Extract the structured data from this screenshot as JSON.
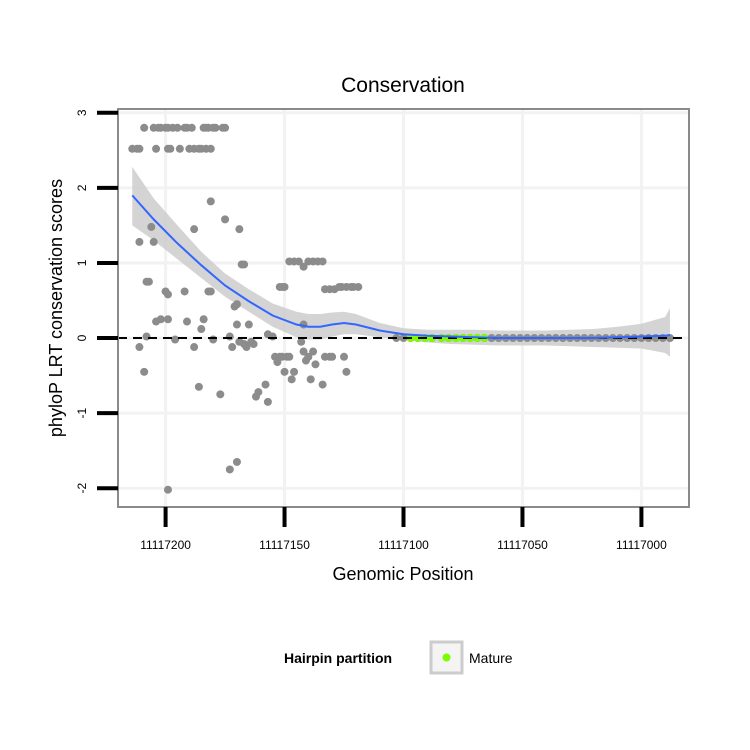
{
  "chart_data": {
    "type": "scatter",
    "title": "Conservation",
    "xlabel": "Genomic Position",
    "ylabel": "phyloP LRT conservation scores",
    "xlim": [
      11117220,
      11116980
    ],
    "ylim": [
      -2.25,
      3.05
    ],
    "x_reversed": true,
    "x_ticks": [
      11117200,
      11117150,
      11117100,
      11117050,
      11117000
    ],
    "x_tick_labels": [
      "11117200",
      "11117150",
      "11117100",
      "11117050",
      "11117000"
    ],
    "y_ticks": [
      -2,
      -1,
      0,
      1,
      2,
      3
    ],
    "y_tick_labels": [
      "-2",
      "-1",
      "0",
      "1",
      "2",
      "3"
    ],
    "reference_line": 0,
    "colors": {
      "points": "#8c8c8c",
      "mature": "#7cfc00",
      "smooth": "#3366ff",
      "ribbon": "#cccccc",
      "panel_border": "#8a8a8a",
      "grid": "#f2f2f2"
    },
    "points": [
      [
        11117214,
        2.52
      ],
      [
        11117212,
        2.52
      ],
      [
        11117211,
        2.52
      ],
      [
        11117209,
        2.8
      ],
      [
        11117205,
        2.8
      ],
      [
        11117203,
        2.8
      ],
      [
        11117202,
        2.8
      ],
      [
        11117200,
        2.8
      ],
      [
        11117199,
        2.8
      ],
      [
        11117197,
        2.8
      ],
      [
        11117195,
        2.8
      ],
      [
        11117192,
        2.8
      ],
      [
        11117191,
        2.8
      ],
      [
        11117189,
        2.8
      ],
      [
        11117184,
        2.8
      ],
      [
        11117183,
        2.8
      ],
      [
        11117182,
        2.8
      ],
      [
        11117180,
        2.8
      ],
      [
        11117179,
        2.8
      ],
      [
        11117176,
        2.8
      ],
      [
        11117175,
        2.8
      ],
      [
        11117204,
        2.52
      ],
      [
        11117199,
        2.52
      ],
      [
        11117198,
        2.52
      ],
      [
        11117194,
        2.52
      ],
      [
        11117190,
        2.52
      ],
      [
        11117188,
        2.52
      ],
      [
        11117186,
        2.52
      ],
      [
        11117185,
        2.52
      ],
      [
        11117183,
        2.52
      ],
      [
        11117181,
        2.52
      ],
      [
        11117211,
        1.28
      ],
      [
        11117205,
        1.28
      ],
      [
        11117206,
        1.48
      ],
      [
        11117207,
        0.75
      ],
      [
        11117208,
        0.75
      ],
      [
        11117200,
        0.62
      ],
      [
        11117199,
        0.58
      ],
      [
        11117188,
        1.45
      ],
      [
        11117181,
        1.82
      ],
      [
        11117175,
        1.58
      ],
      [
        11117169,
        1.45
      ],
      [
        11117168,
        0.98
      ],
      [
        11117167,
        0.98
      ],
      [
        11117211,
        -0.12
      ],
      [
        11117208,
        0.02
      ],
      [
        11117209,
        -0.45
      ],
      [
        11117204,
        0.22
      ],
      [
        11117202,
        0.25
      ],
      [
        11117199,
        0.25
      ],
      [
        11117196,
        -0.02
      ],
      [
        11117192,
        0.62
      ],
      [
        11117191,
        0.22
      ],
      [
        11117188,
        -0.12
      ],
      [
        11117185,
        0.12
      ],
      [
        11117184,
        0.25
      ],
      [
        11117182,
        0.62
      ],
      [
        11117181,
        0.62
      ],
      [
        11117186,
        -0.65
      ],
      [
        11117180,
        -0.02
      ],
      [
        11117177,
        -0.75
      ],
      [
        11117173,
        0.02
      ],
      [
        11117171,
        0.42
      ],
      [
        11117170,
        0.45
      ],
      [
        11117169,
        -0.05
      ],
      [
        11117170,
        0.18
      ],
      [
        11117172,
        -0.12
      ],
      [
        11117167,
        -0.08
      ],
      [
        11117166,
        -0.12
      ],
      [
        11117165,
        0.18
      ],
      [
        11117164,
        -0.05
      ],
      [
        11117163,
        -0.08
      ],
      [
        11117162,
        -0.78
      ],
      [
        11117161,
        -0.72
      ],
      [
        11117173,
        -1.75
      ],
      [
        11117170,
        -1.65
      ],
      [
        11117199,
        -2.02
      ],
      [
        11117157,
        0.05
      ],
      [
        11117158,
        -0.62
      ],
      [
        11117157,
        -0.85
      ],
      [
        11117155,
        0.02
      ],
      [
        11117154,
        -0.25
      ],
      [
        11117153,
        -0.32
      ],
      [
        11117152,
        -0.25
      ],
      [
        11117151,
        -0.25
      ],
      [
        11117150,
        -0.45
      ],
      [
        11117149,
        -0.25
      ],
      [
        11117148,
        -0.25
      ],
      [
        11117146,
        -0.45
      ],
      [
        11117147,
        -0.55
      ],
      [
        11117152,
        0.68
      ],
      [
        11117151,
        0.68
      ],
      [
        11117150,
        0.68
      ],
      [
        11117148,
        1.02
      ],
      [
        11117146,
        1.02
      ],
      [
        11117144,
        1.02
      ],
      [
        11117142,
        0.95
      ],
      [
        11117140,
        1.02
      ],
      [
        11117138,
        1.02
      ],
      [
        11117136,
        1.02
      ],
      [
        11117134,
        1.02
      ],
      [
        11117143,
        -0.05
      ],
      [
        11117142,
        -0.18
      ],
      [
        11117142,
        0.18
      ],
      [
        11117141,
        -0.3
      ],
      [
        11117140,
        -0.25
      ],
      [
        11117139,
        -0.55
      ],
      [
        11117138,
        -0.18
      ],
      [
        11117137,
        -0.35
      ],
      [
        11117134,
        -0.62
      ],
      [
        11117133,
        -0.25
      ],
      [
        11117131,
        -0.25
      ],
      [
        11117130,
        -0.25
      ],
      [
        11117133,
        0.65
      ],
      [
        11117131,
        0.65
      ],
      [
        11117129,
        0.65
      ],
      [
        11117127,
        0.68
      ],
      [
        11117126,
        0.68
      ],
      [
        11117124,
        0.68
      ],
      [
        11117122,
        0.68
      ],
      [
        11117121,
        0.68
      ],
      [
        11117119,
        0.68
      ],
      [
        11117124,
        -0.45
      ],
      [
        11117125,
        -0.25
      ]
    ],
    "flat_points_x": [
      11117103,
      11117100,
      11117097,
      11117094,
      11117091,
      11117088,
      11117084,
      11117081,
      11117078,
      11117075,
      11117072,
      11117069,
      11117066,
      11117063,
      11117060,
      11117057,
      11117054,
      11117051,
      11117048,
      11117045,
      11117042,
      11117039,
      11117036,
      11117033,
      11117030,
      11117027,
      11117024,
      11117021,
      11117018,
      11117015,
      11117012,
      11117009,
      11117006,
      11117003,
      11117000,
      11116997,
      11116994,
      11116991,
      11116988
    ],
    "mature_x": [
      11117097,
      11117094,
      11117091,
      11117088,
      11117084,
      11117081,
      11117078,
      11117075,
      11117072,
      11117069,
      11117066
    ],
    "smooth": {
      "x": [
        11117214,
        11117205,
        11117195,
        11117185,
        11117175,
        11117165,
        11117155,
        11117145,
        11117140,
        11117135,
        11117130,
        11117125,
        11117120,
        11117115,
        11117110,
        11117100,
        11117090,
        11117080,
        11117070,
        11117060,
        11117050,
        11117040,
        11117030,
        11117020,
        11117010,
        11117000,
        11116990,
        11116988
      ],
      "y": [
        1.9,
        1.58,
        1.26,
        0.97,
        0.7,
        0.49,
        0.3,
        0.18,
        0.15,
        0.15,
        0.18,
        0.2,
        0.18,
        0.14,
        0.1,
        0.05,
        0.03,
        0.02,
        0.01,
        0.0,
        0.0,
        0.0,
        0.0,
        0.0,
        0.01,
        0.02,
        0.03,
        0.04
      ],
      "lo": [
        1.5,
        1.3,
        1.05,
        0.8,
        0.55,
        0.35,
        0.15,
        0.01,
        -0.02,
        -0.02,
        0.02,
        0.05,
        0.05,
        0.03,
        0.01,
        -0.02,
        -0.06,
        -0.08,
        -0.09,
        -0.1,
        -0.1,
        -0.1,
        -0.11,
        -0.12,
        -0.13,
        -0.14,
        -0.2,
        -0.25
      ],
      "hi": [
        2.28,
        1.86,
        1.5,
        1.15,
        0.86,
        0.65,
        0.46,
        0.35,
        0.32,
        0.32,
        0.34,
        0.35,
        0.32,
        0.26,
        0.2,
        0.13,
        0.11,
        0.11,
        0.11,
        0.1,
        0.1,
        0.1,
        0.11,
        0.12,
        0.15,
        0.19,
        0.28,
        0.4
      ]
    }
  },
  "legend": {
    "title": "Hairpin partition",
    "label": "Mature"
  }
}
